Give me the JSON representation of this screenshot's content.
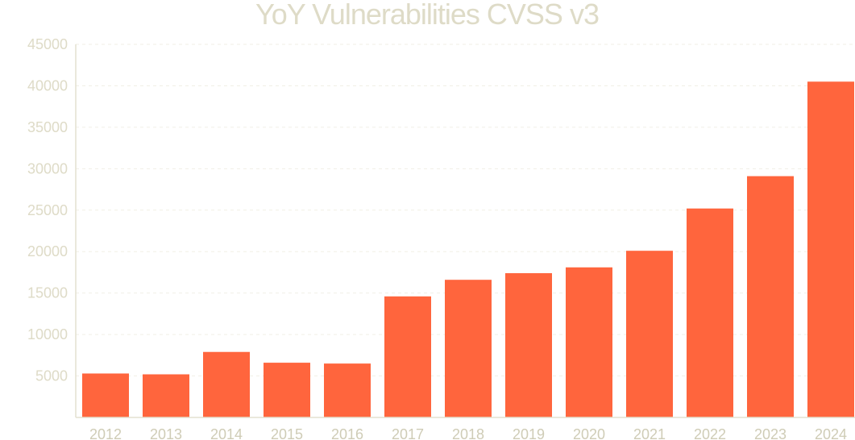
{
  "chart_data": {
    "type": "bar",
    "title": "YoY Vulnerabilities CVSS v3",
    "xlabel": "",
    "ylabel": "",
    "categories": [
      "2012",
      "2013",
      "2014",
      "2015",
      "2016",
      "2017",
      "2018",
      "2019",
      "2020",
      "2021",
      "2022",
      "2023",
      "2024"
    ],
    "values": [
      5300,
      5200,
      7900,
      6600,
      6500,
      14600,
      16600,
      17400,
      18100,
      20100,
      25200,
      29100,
      40500
    ],
    "ylim": [
      0,
      45000
    ],
    "yticks": [
      "5000",
      "10000",
      "15000",
      "20000",
      "25000",
      "30000",
      "35000",
      "40000",
      "45000"
    ],
    "grid": true,
    "legend": "none",
    "colors": {
      "bar": "#ff653d",
      "text": "#dedbc7",
      "axis": "#e4e1d0",
      "grid": "#f1efe6"
    }
  }
}
